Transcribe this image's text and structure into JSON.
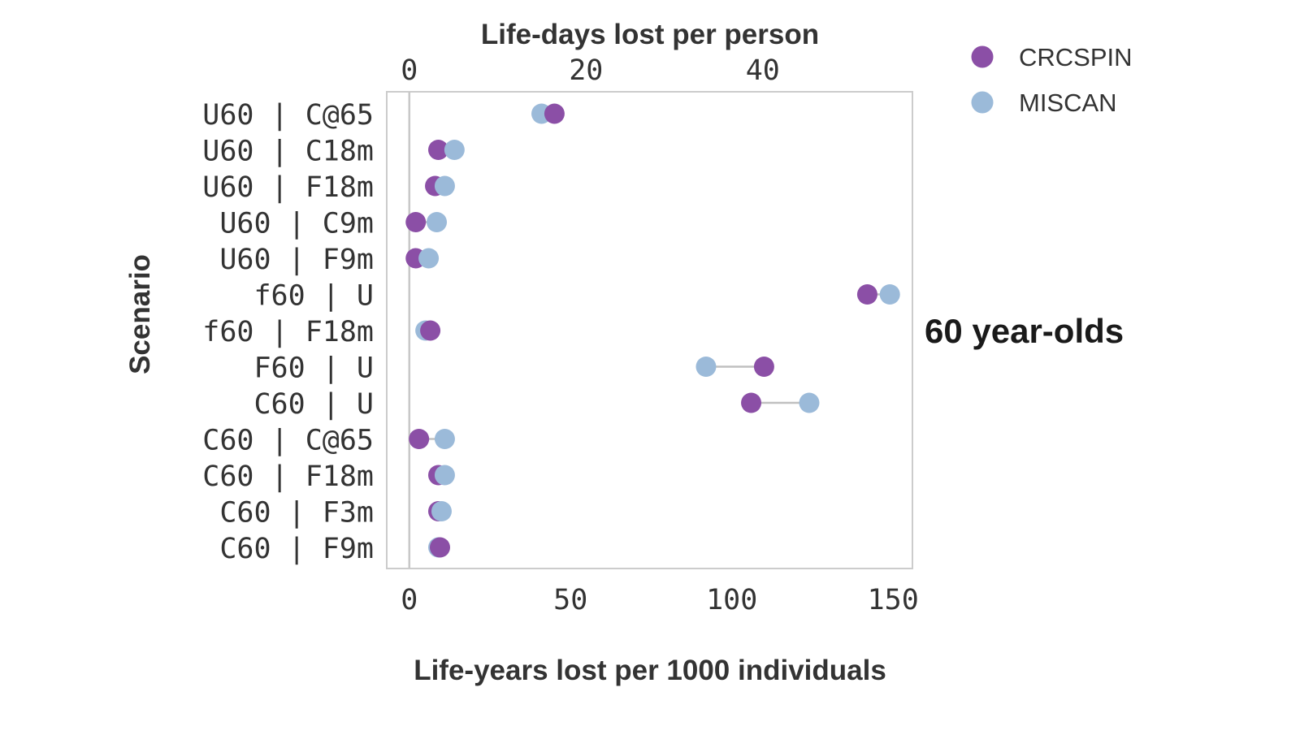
{
  "chart_data": {
    "type": "scatter",
    "subtype": "dumbbell",
    "panel_label": "60 year-olds",
    "xlabel_bottom": "Life-years lost per 1000 individuals",
    "xlabel_top": "Life-days lost per person",
    "ylabel": "Scenario",
    "xlim": [
      -7,
      156
    ],
    "x_ticks_bottom": [
      0,
      50,
      100,
      150
    ],
    "x_ticks_top": [
      0,
      20,
      40
    ],
    "grid": false,
    "reference_line_x": 0,
    "legend_placement": "top-right",
    "categories": [
      "U60 | C@65",
      "U60 | C18m",
      "U60 | F18m",
      "U60 | C9m",
      "U60 | F9m",
      "f60 | U",
      "f60 | F18m",
      "F60 | U",
      "C60 | U",
      "C60 | C@65",
      "C60 | F18m",
      "C60 | F3m",
      "C60 | F9m"
    ],
    "series": [
      {
        "name": "CRCSPIN",
        "color": "#8B4FA6",
        "values": [
          45,
          9,
          8,
          2,
          2,
          142,
          6.5,
          110,
          106,
          3,
          9,
          9,
          9.5
        ]
      },
      {
        "name": "MISCAN",
        "color": "#9BBAD9",
        "values": [
          41,
          14,
          11,
          8.5,
          6,
          149,
          5,
          92,
          124,
          11,
          11,
          10,
          9
        ]
      }
    ]
  }
}
